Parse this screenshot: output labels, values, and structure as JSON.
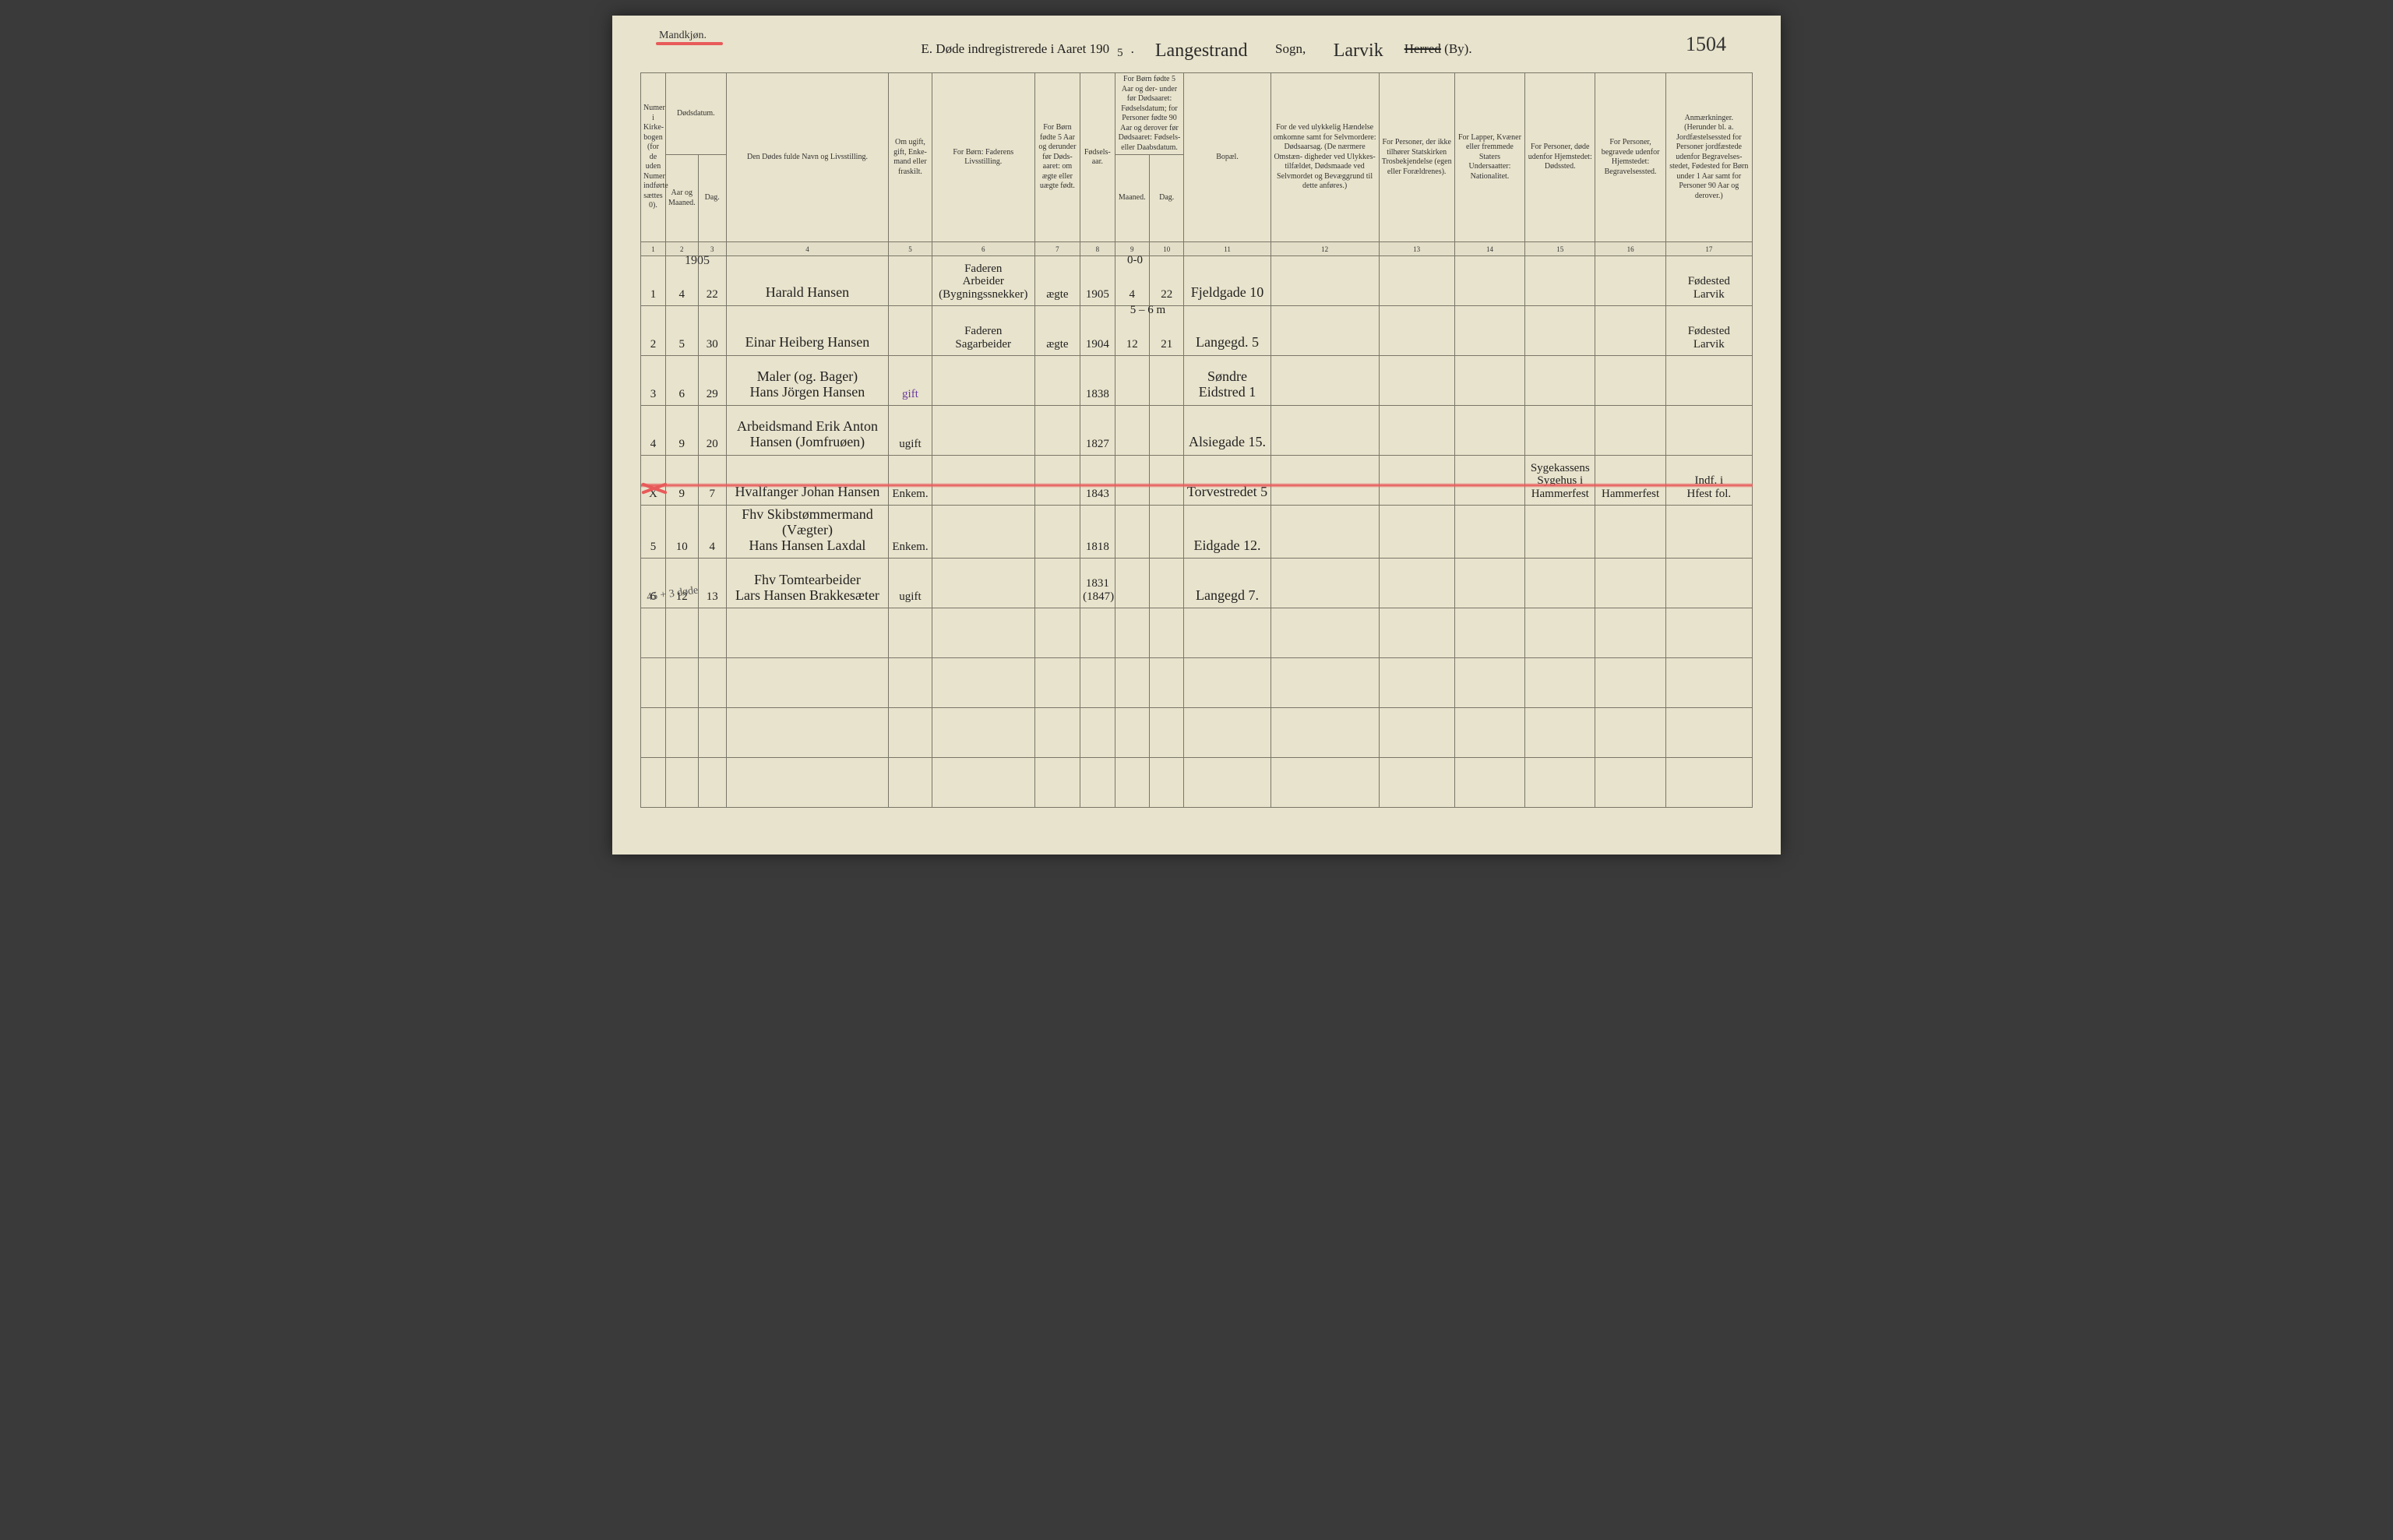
{
  "page": {
    "gender_label": "Mandkjøn.",
    "title_prefix": "E.   Døde indregistrerede i Aaret 190",
    "title_year_last": "5",
    "title_parish_hand": "Langestrand",
    "title_sogn": "Sogn,",
    "title_district_hand": "Larvik",
    "title_herred_struck": "Herred",
    "title_by": "(By).",
    "page_number_hand": "1504",
    "margin_pencil_note": "45 + 3 døde",
    "colors": {
      "paper": "#e8e3cc",
      "ink": "#222222",
      "rule": "#7a7668",
      "red": "#e85a5a",
      "purple": "#6a3aa0",
      "pencil": "#555555"
    }
  },
  "headers": {
    "c1": "Numer i Kirke-\nbogen (for de uden Numer indførte sættes 0).",
    "c2_3_top": "Dødsdatum.",
    "c2": "Aar og Maaned.",
    "c3": "Dag.",
    "c4": "Den Dødes fulde Navn og Livsstilling.",
    "c5": "Om ugift, gift, Enke-\nmand eller fraskilt.",
    "c6": "For Børn:\nFaderens Livsstilling.",
    "c7": "For Børn fødte 5 Aar og derunder før Døds-\naaret: om ægte eller uægte født.",
    "c8": "Fødsels-\naar.",
    "c9_10_top": "For Børn fødte 5 Aar og der-\nunder før Dødsaaret: Fødselsdatum; for Personer fødte 90 Aar og derover før Dødsaaret: Fødsels- eller Daabsdatum.",
    "c9": "Maaned.",
    "c10": "Dag.",
    "c11": "Bopæl.",
    "c12": "For de ved ulykkelig Hændelse omkomne samt for Selvmordere:\nDødsaarsag.\n(De nærmere Omstæn-\ndigheder ved Ulykkes-\ntilfældet, Dødsmaade ved Selvmordet og Bevæggrund til dette anføres.)",
    "c13": "For Personer, der ikke tilhører Statskirken\nTrosbekjendelse (egen eller Forældrenes).",
    "c14": "For Lapper, Kvæner eller fremmede Staters Undersaatter:\nNationalitet.",
    "c15": "For Personer, døde udenfor Hjemstedet:\nDødssted.",
    "c16": "For Personer, begravede udenfor Hjemstedet:\nBegravelsessted.",
    "c17": "Anmærkninger.\n(Herunder bl. a. Jordfæstelsessted for Personer jordfæstede udenfor Begravelses-\nstedet, Fødested for Børn under 1 Aar samt for Personer 90 Aar og derover.)"
  },
  "colnums": [
    "1",
    "2",
    "3",
    "4",
    "5",
    "6",
    "7",
    "8",
    "9",
    "10",
    "11",
    "12",
    "13",
    "14",
    "15",
    "16",
    "17"
  ],
  "year_above_col2": "1905",
  "rows": [
    {
      "n": "1",
      "mnd": "4",
      "dag": "22",
      "name": "Harald Hansen",
      "status": "",
      "father": "Faderen\nArbeider (Bygningssnekker)",
      "legit": "ægte",
      "faar": "1905",
      "fm": "4",
      "fd": "22",
      "bopael": "Fjeldgade 10",
      "c12": "",
      "c13": "",
      "c14": "",
      "c15": "",
      "c16": "",
      "anm": "Fødested\nLarvik",
      "age_note": "0-0"
    },
    {
      "n": "2",
      "mnd": "5",
      "dag": "30",
      "name": "Einar Heiberg Hansen",
      "status": "",
      "father": "Faderen\nSagarbeider",
      "legit": "ægte",
      "faar": "1904",
      "fm": "12",
      "fd": "21",
      "bopael": "Langegd. 5",
      "c12": "",
      "c13": "",
      "c14": "",
      "c15": "",
      "c16": "",
      "anm": "Fødested\nLarvik",
      "age_note": "5 – 6 m"
    },
    {
      "n": "3",
      "mnd": "6",
      "dag": "29",
      "name": "Maler (og. Bager)\nHans Jörgen Hansen",
      "status": "gift",
      "status_purple": true,
      "father": "",
      "legit": "",
      "faar": "1838",
      "fm": "",
      "fd": "",
      "bopael": "Søndre Eidstred 1",
      "c12": "",
      "c13": "",
      "c14": "",
      "c15": "",
      "c16": "",
      "anm": ""
    },
    {
      "n": "4",
      "mnd": "9",
      "dag": "20",
      "name": "Arbeidsmand  Erik Anton\nHansen (Jomfruøen)",
      "status": "ugift",
      "father": "",
      "legit": "",
      "faar": "1827",
      "fm": "",
      "fd": "",
      "bopael": "Alsiegade 15.",
      "c12": "",
      "c13": "",
      "c14": "",
      "c15": "",
      "c16": "",
      "anm": ""
    },
    {
      "struck": true,
      "n": "X",
      "mnd": "9",
      "dag": "7",
      "name": "Hvalfanger Johan Hansen",
      "status": "Enkem.",
      "father": "",
      "legit": "",
      "faar": "1843",
      "fm": "",
      "fd": "",
      "bopael": "Torvestredet 5",
      "c12": "",
      "c13": "",
      "c14": "",
      "c15": "Sygekassens\nSygehus i\nHammerfest",
      "c16": "Hammerfest",
      "anm": "Indf. i\nHfest fol."
    },
    {
      "n": "5",
      "mnd": "10",
      "dag": "4",
      "name": "Fhv Skibstømmermand (Vægter)\nHans Hansen Laxdal",
      "status": "Enkem.",
      "father": "",
      "legit": "",
      "faar": "1818",
      "fm": "",
      "fd": "",
      "bopael": "Eidgade 12.",
      "c12": "",
      "c13": "",
      "c14": "",
      "c15": "",
      "c16": "",
      "anm": ""
    },
    {
      "n": "6",
      "mnd": "12",
      "dag": "13",
      "name": "Fhv Tomtearbeider\nLars Hansen Brakkesæter",
      "status": "ugift",
      "father": "",
      "legit": "",
      "faar": "1831\n(1847)",
      "fm": "",
      "fd": "",
      "bopael": "Langegd 7.",
      "c12": "",
      "c13": "",
      "c14": "",
      "c15": "",
      "c16": "",
      "anm": ""
    }
  ],
  "empty_rows": 4
}
